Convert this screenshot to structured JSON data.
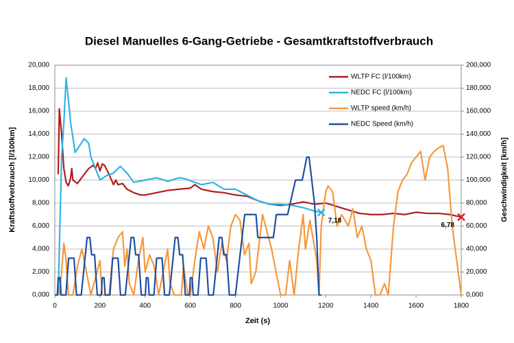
{
  "chart_data": {
    "type": "line",
    "title": "Diesel Manuelles 6-Gang-Getriebe - Gesamtkraftstoffverbrauch",
    "x_label": "Zeit (s)",
    "y_label": "Kraftstoffverbrauch [l/100km]",
    "y2_label": "Geschwindigkeit [km/h]",
    "xlim": [
      0,
      1800
    ],
    "xticks": [
      0,
      200,
      400,
      600,
      800,
      1000,
      1200,
      1400,
      1600,
      1800
    ],
    "ylim": [
      0,
      20
    ],
    "yticks": [
      {
        "value": 0,
        "label": "0,000"
      },
      {
        "value": 2,
        "label": "2,000"
      },
      {
        "value": 4,
        "label": "4,000"
      },
      {
        "value": 6,
        "label": "6,000"
      },
      {
        "value": 8,
        "label": "8,000"
      },
      {
        "value": 10,
        "label": "10,000"
      },
      {
        "value": 12,
        "label": "12,000"
      },
      {
        "value": 14,
        "label": "14,000"
      },
      {
        "value": 16,
        "label": "16,000"
      },
      {
        "value": 18,
        "label": "18,000"
      },
      {
        "value": 20,
        "label": "20,000"
      }
    ],
    "y2lim": [
      0,
      200
    ],
    "y2ticks": [
      {
        "value": 0,
        "label": "0,000"
      },
      {
        "value": 20,
        "label": "20,000"
      },
      {
        "value": 40,
        "label": "40,000"
      },
      {
        "value": 60,
        "label": "60,000"
      },
      {
        "value": 80,
        "label": "80,000"
      },
      {
        "value": 100,
        "label": "100,000"
      },
      {
        "value": 120,
        "label": "120,000"
      },
      {
        "value": 140,
        "label": "140,000"
      },
      {
        "value": 160,
        "label": "160,000"
      },
      {
        "value": 180,
        "label": "180,000"
      },
      {
        "value": 200,
        "label": "200,000"
      }
    ],
    "grid": true,
    "legend": "top-right",
    "series": [
      {
        "name": "WLTP FC (l/100km)",
        "color": "#b01c1c",
        "x": [
          15,
          20,
          30,
          40,
          50,
          60,
          70,
          75,
          80,
          100,
          130,
          150,
          170,
          180,
          190,
          200,
          210,
          220,
          240,
          260,
          270,
          280,
          300,
          320,
          350,
          380,
          400,
          450,
          500,
          550,
          600,
          620,
          650,
          700,
          750,
          800,
          850,
          900,
          950,
          1000,
          1050,
          1100,
          1150,
          1200,
          1250,
          1300,
          1350,
          1400,
          1450,
          1500,
          1550,
          1600,
          1650,
          1700,
          1750,
          1800
        ],
        "values": [
          10.5,
          16.2,
          14,
          11,
          9.8,
          9.5,
          10.2,
          11,
          10,
          9.7,
          10.5,
          11,
          11.3,
          11,
          11.5,
          10.8,
          11.4,
          11.3,
          10.5,
          9.6,
          10,
          9.6,
          9.7,
          9.2,
          8.9,
          8.7,
          8.7,
          8.9,
          9.1,
          9.2,
          9.3,
          9.6,
          9.2,
          9.0,
          8.9,
          8.7,
          8.6,
          8.2,
          7.9,
          7.8,
          7.9,
          8.1,
          7.9,
          8.0,
          7.7,
          7.4,
          7.1,
          7.0,
          7.0,
          7.1,
          7.0,
          7.2,
          7.1,
          7.1,
          7.0,
          6.78
        ]
      },
      {
        "name": "NEDC FC (l/100km)",
        "color": "#2eb4e6",
        "x": [
          15,
          30,
          40,
          50,
          60,
          70,
          90,
          110,
          130,
          150,
          160,
          180,
          200,
          230,
          260,
          290,
          320,
          350,
          400,
          450,
          500,
          550,
          580,
          620,
          650,
          700,
          750,
          800,
          850,
          900,
          950,
          1000,
          1050,
          1100,
          1150,
          1180
        ],
        "values": [
          0,
          12,
          15,
          18.9,
          17,
          15,
          12.4,
          13,
          13.6,
          13.2,
          12,
          11,
          10,
          10.4,
          10.6,
          11.2,
          10.6,
          9.8,
          10,
          10.2,
          9.9,
          10.2,
          10.1,
          9.8,
          9.6,
          9.8,
          9.2,
          9.2,
          8.7,
          8.2,
          7.9,
          7.9,
          7.8,
          7.6,
          7.3,
          7.18
        ]
      },
      {
        "name": "WLTP speed (km/h)",
        "color": "#f7973a",
        "axis": "y2",
        "x": [
          0,
          20,
          30,
          40,
          50,
          60,
          80,
          100,
          120,
          140,
          160,
          180,
          200,
          210,
          240,
          260,
          280,
          300,
          310,
          320,
          330,
          350,
          370,
          390,
          400,
          420,
          440,
          460,
          480,
          500,
          510,
          530,
          560,
          570,
          589,
          600,
          620,
          640,
          660,
          680,
          700,
          720,
          740,
          760,
          780,
          800,
          820,
          840,
          860,
          870,
          890,
          920,
          940,
          960,
          980,
          1000,
          1022,
          1040,
          1060,
          1080,
          1100,
          1110,
          1130,
          1160,
          1170,
          1180,
          1200,
          1210,
          1230,
          1250,
          1270,
          1300,
          1320,
          1340,
          1360,
          1380,
          1400,
          1420,
          1440,
          1460,
          1477,
          1500,
          1520,
          1540,
          1560,
          1580,
          1600,
          1620,
          1640,
          1660,
          1680,
          1700,
          1720,
          1740,
          1760,
          1780,
          1800
        ],
        "values": [
          0,
          0,
          20,
          45,
          30,
          0,
          0,
          25,
          40,
          20,
          0,
          15,
          30,
          0,
          0,
          40,
          50,
          55,
          25,
          40,
          10,
          0,
          30,
          50,
          20,
          35,
          25,
          0,
          20,
          40,
          10,
          0,
          0,
          25,
          0,
          0,
          30,
          55,
          40,
          60,
          50,
          20,
          45,
          30,
          60,
          70,
          65,
          35,
          45,
          10,
          20,
          70,
          55,
          40,
          20,
          0,
          0,
          30,
          0,
          40,
          70,
          40,
          65,
          30,
          0,
          60,
          90,
          95,
          90,
          60,
          70,
          60,
          75,
          50,
          60,
          40,
          30,
          0,
          0,
          10,
          0,
          60,
          90,
          100,
          105,
          115,
          120,
          125,
          100,
          120,
          125,
          128,
          130,
          110,
          60,
          30,
          0
        ]
      },
      {
        "name": "NEDC Speed (km/h)",
        "color": "#1f4ea0",
        "axis": "y2",
        "x": [
          0,
          11,
          15,
          23,
          28,
          49,
          61,
          85,
          96,
          117,
          143,
          155,
          163,
          176,
          188,
          195,
          206,
          210,
          218,
          223,
          244,
          256,
          280,
          291,
          312,
          338,
          350,
          358,
          371,
          383,
          390,
          401,
          405,
          413,
          418,
          439,
          451,
          475,
          486,
          507,
          533,
          545,
          553,
          566,
          578,
          585,
          596,
          600,
          608,
          613,
          634,
          646,
          670,
          681,
          702,
          728,
          740,
          748,
          761,
          773,
          780,
          800,
          841,
          891,
          899,
          968,
          981,
          1031,
          1066,
          1096,
          1116,
          1126,
          1150,
          1160,
          1170,
          1180
        ],
        "values": [
          0,
          0,
          15,
          15,
          0,
          0,
          32,
          32,
          0,
          0,
          50,
          50,
          35,
          35,
          0,
          0,
          0,
          15,
          15,
          0,
          0,
          32,
          32,
          0,
          0,
          50,
          50,
          35,
          35,
          0,
          0,
          0,
          15,
          15,
          0,
          0,
          32,
          32,
          0,
          0,
          50,
          50,
          35,
          35,
          0,
          0,
          0,
          15,
          15,
          0,
          0,
          32,
          32,
          0,
          0,
          50,
          50,
          35,
          35,
          0,
          0,
          0,
          70,
          70,
          50,
          50,
          70,
          70,
          100,
          100,
          120,
          120,
          80,
          50,
          0,
          0
        ]
      }
    ],
    "annotations": [
      {
        "text": "7,18",
        "x": 1180,
        "y": 7.18,
        "color": "#2eb4e6"
      },
      {
        "text": "6,78",
        "x": 1800,
        "y": 6.78,
        "color": "#e0202a"
      }
    ]
  }
}
